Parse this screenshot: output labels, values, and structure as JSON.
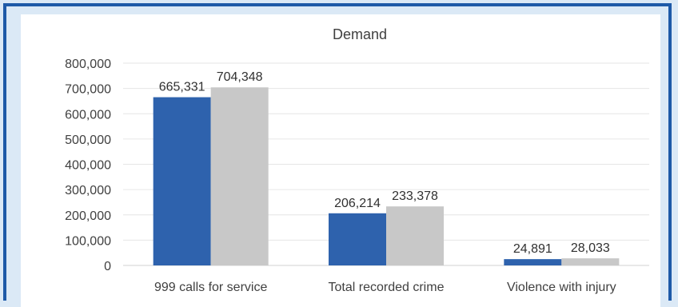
{
  "chart_data": {
    "type": "bar",
    "title": "Demand",
    "xlabel": "",
    "ylabel": "",
    "categories": [
      "999 calls for service",
      "Total recorded crime",
      "Violence with injury"
    ],
    "series": [
      {
        "values": [
          665331,
          206214,
          24891
        ],
        "color": "#2e62ad"
      },
      {
        "values": [
          704348,
          233378,
          28033
        ],
        "color": "#c8c8c8"
      }
    ],
    "data_labels": [
      [
        "665,331",
        "206,214",
        "24,891"
      ],
      [
        "704,348",
        "233,378",
        "28,033"
      ]
    ],
    "ylim": [
      0,
      800000
    ],
    "yticks": [
      0,
      100000,
      200000,
      300000,
      400000,
      500000,
      600000,
      700000,
      800000
    ],
    "ytick_labels": [
      "0",
      "100,000",
      "200,000",
      "300,000",
      "400,000",
      "500,000",
      "600,000",
      "700,000",
      "800,000"
    ],
    "grid": true,
    "legend": "none"
  }
}
